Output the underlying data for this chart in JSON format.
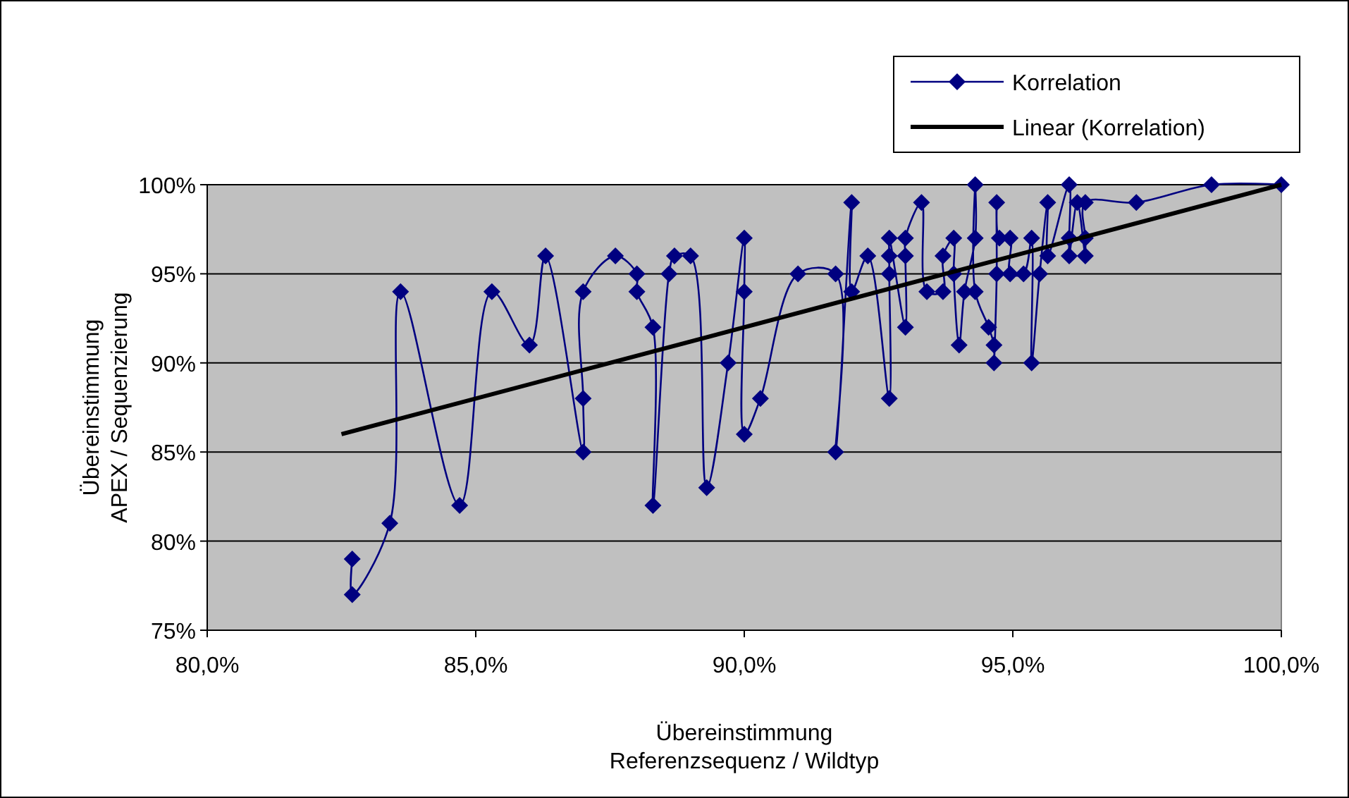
{
  "chart_data": {
    "type": "line",
    "xlabel": "Übereinstimmung\nReferenzsequenz / Wildtyp",
    "ylabel": "Übereinstimmung\nAPEX / Sequenzierung",
    "xlim": [
      80,
      100
    ],
    "xticks": [
      {
        "value": 80,
        "label": "80,0%"
      },
      {
        "value": 85,
        "label": "85,0%"
      },
      {
        "value": 90,
        "label": "90,0%"
      },
      {
        "value": 95,
        "label": "95,0%"
      },
      {
        "value": 100,
        "label": "100,0%"
      }
    ],
    "ylim": [
      75,
      100
    ],
    "yticks": [
      {
        "value": 75,
        "label": "75%"
      },
      {
        "value": 80,
        "label": "80%"
      },
      {
        "value": 85,
        "label": "85%"
      },
      {
        "value": 90,
        "label": "90%"
      },
      {
        "value": 95,
        "label": "95%"
      },
      {
        "value": 100,
        "label": "100%"
      }
    ],
    "grid": "y",
    "legend": "top right",
    "series": [
      {
        "name": "Korrelation",
        "color": "#000080",
        "marker": "diamond",
        "line_style": "solid",
        "x": [
          82.7,
          82.7,
          83.4,
          83.6,
          84.7,
          85.3,
          86.0,
          86.3,
          87.0,
          87.0,
          87.0,
          87.6,
          88.0,
          88.0,
          88.3,
          88.3,
          88.6,
          88.7,
          89.0,
          89.3,
          89.7,
          90.0,
          90.0,
          90.0,
          90.3,
          91.0,
          91.7,
          91.7,
          92.0,
          92.0,
          92.3,
          92.7,
          92.7,
          92.7,
          92.7,
          93.0,
          93.0,
          93.0,
          93.3,
          93.4,
          93.7,
          93.7,
          93.9,
          93.9,
          94.0,
          94.1,
          94.3,
          94.3,
          94.3,
          94.55,
          94.65,
          94.65,
          94.7,
          94.7,
          94.75,
          94.95,
          94.95,
          95.2,
          95.35,
          95.35,
          95.5,
          95.65,
          95.65,
          96.05,
          96.05,
          96.05,
          96.2,
          96.35,
          96.35,
          96.35,
          97.3,
          98.7,
          100
        ],
        "values": [
          79,
          77,
          81,
          94,
          82,
          94,
          91,
          96,
          85,
          88,
          94,
          96,
          95,
          94,
          92,
          82,
          95,
          96,
          96,
          83,
          90,
          97,
          94,
          86,
          88,
          95,
          95,
          85,
          99,
          94,
          96,
          88,
          95,
          96,
          97,
          92,
          96,
          97,
          99,
          94,
          94,
          96,
          97,
          95,
          91,
          94,
          97,
          100,
          94,
          92,
          91,
          90,
          95,
          99,
          97,
          97,
          95,
          95,
          97,
          90,
          95,
          99,
          96,
          100,
          97,
          96,
          99,
          96,
          97,
          99,
          99,
          100,
          100
        ]
      },
      {
        "name": "Linear (Korrelation)",
        "color": "#000000",
        "marker": "none",
        "line_style": "solid",
        "x": [
          82.5,
          100
        ],
        "values": [
          86,
          100
        ]
      }
    ]
  }
}
